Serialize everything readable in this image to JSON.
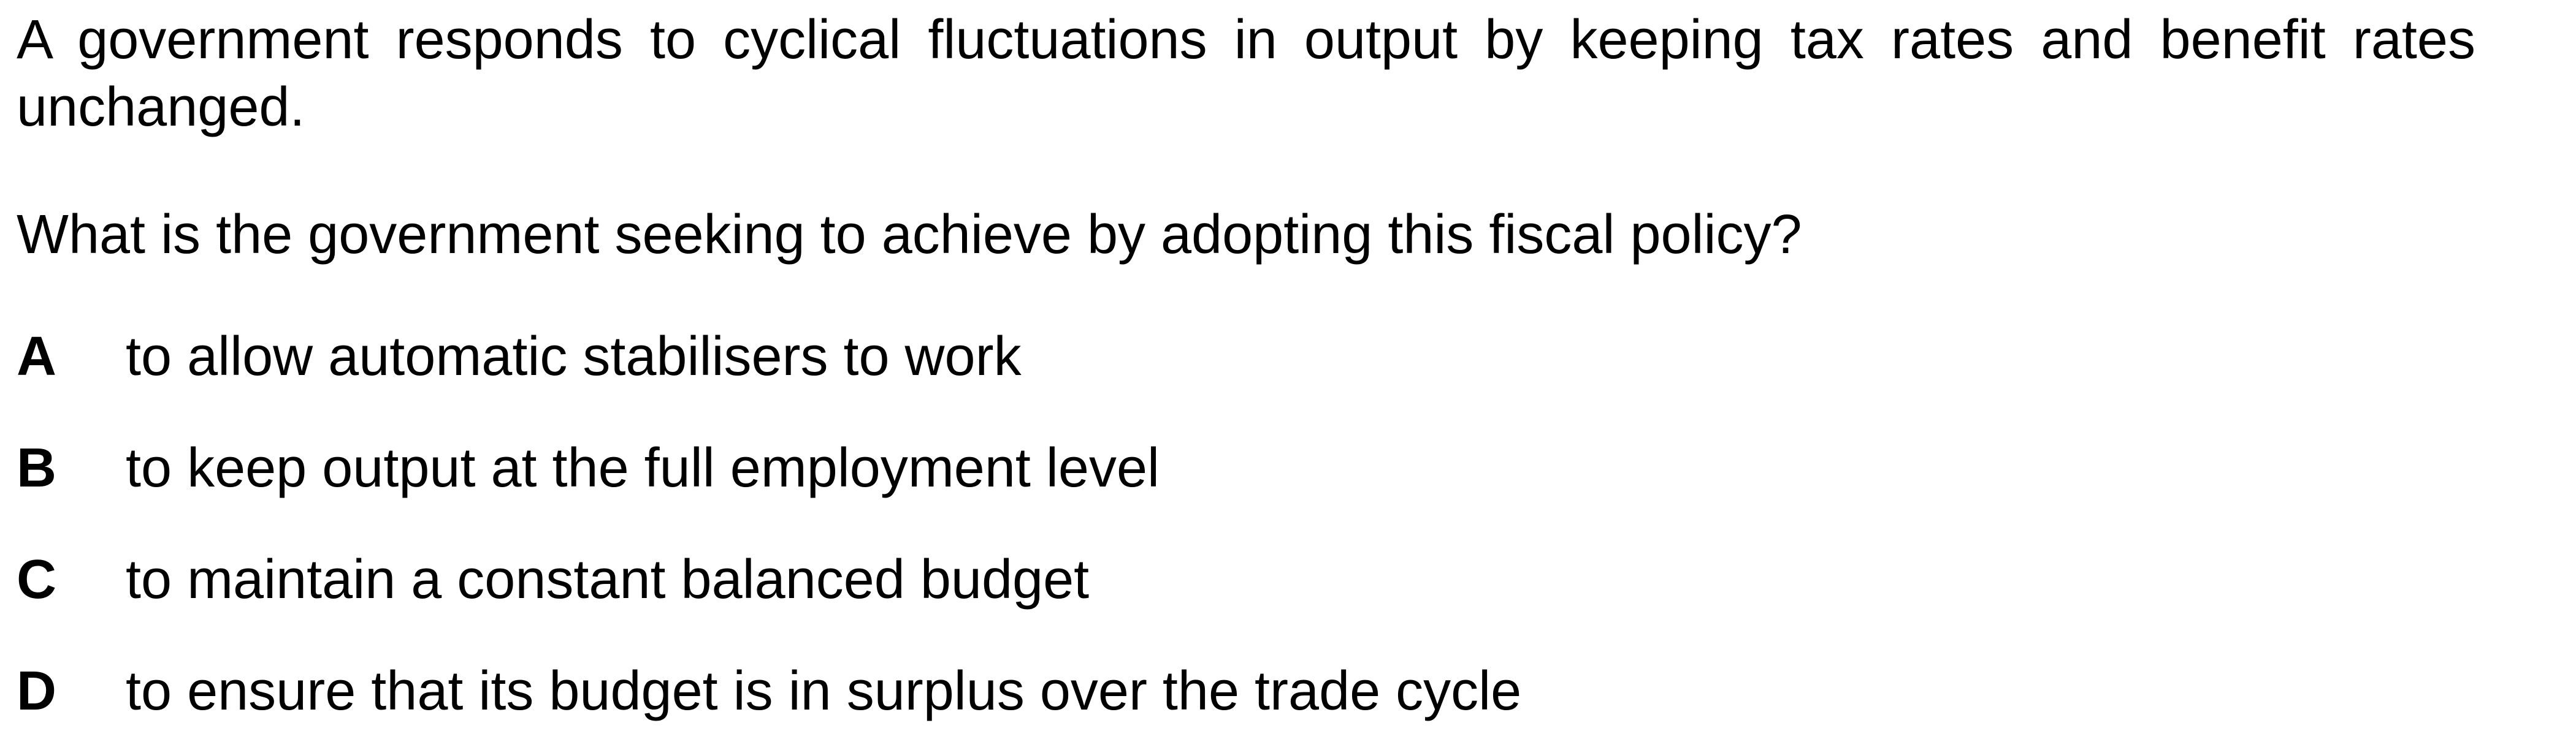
{
  "question": {
    "stem": "A government responds to cyclical fluctuations in output by keeping tax rates and benefit rates unchanged.",
    "prompt": "What is the government seeking to achieve by adopting this fiscal policy?"
  },
  "options": [
    {
      "letter": "A",
      "text": "to allow automatic stabilisers to work"
    },
    {
      "letter": "B",
      "text": "to keep output at the full employment level"
    },
    {
      "letter": "C",
      "text": "to maintain a constant balanced budget"
    },
    {
      "letter": "D",
      "text": "to ensure that its budget is in surplus over the trade cycle"
    }
  ]
}
